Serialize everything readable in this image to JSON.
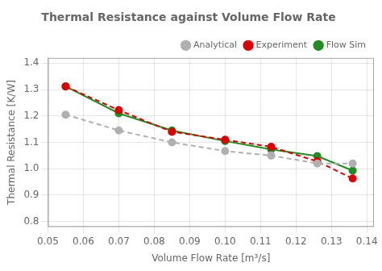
{
  "chart_data": {
    "type": "line",
    "title": "Thermal Resistance against Volume Flow Rate",
    "xlabel": "Volume Flow Rate [m³/s]",
    "ylabel": "Thermal Resistance [K/W]",
    "x": [
      0.055,
      0.07,
      0.085,
      0.1,
      0.113,
      0.126,
      0.136
    ],
    "series": [
      {
        "name": "Analytical",
        "color": "#b0b0b0",
        "line_style": "dashed",
        "marker": "circle",
        "values": [
          1.205,
          1.145,
          1.1,
          1.067,
          1.05,
          1.02,
          1.02
        ]
      },
      {
        "name": "Experiment",
        "color": "#dd0000",
        "line_style": "dashed",
        "marker": "circle",
        "values": [
          1.312,
          1.222,
          1.14,
          1.11,
          1.083,
          1.028,
          0.963
        ]
      },
      {
        "name": "Flow Sim",
        "color": "#228B22",
        "line_style": "solid",
        "marker": "circle",
        "values": [
          1.312,
          1.21,
          1.145,
          1.105,
          1.073,
          1.048,
          0.993
        ]
      }
    ],
    "xlim": [
      0.05,
      0.142
    ],
    "ylim": [
      0.78,
      1.42
    ],
    "xticks": [
      0.05,
      0.06,
      0.07,
      0.08,
      0.09,
      {
        "value": 0.1,
        "label": "0.10"
      },
      0.11,
      0.12,
      0.13,
      0.14
    ],
    "yticks": [
      0.8,
      0.9,
      {
        "value": 1.0,
        "label": "1.0"
      },
      1.1,
      1.2,
      1.3,
      1.4
    ],
    "grid": true,
    "legend": "upper right"
  }
}
